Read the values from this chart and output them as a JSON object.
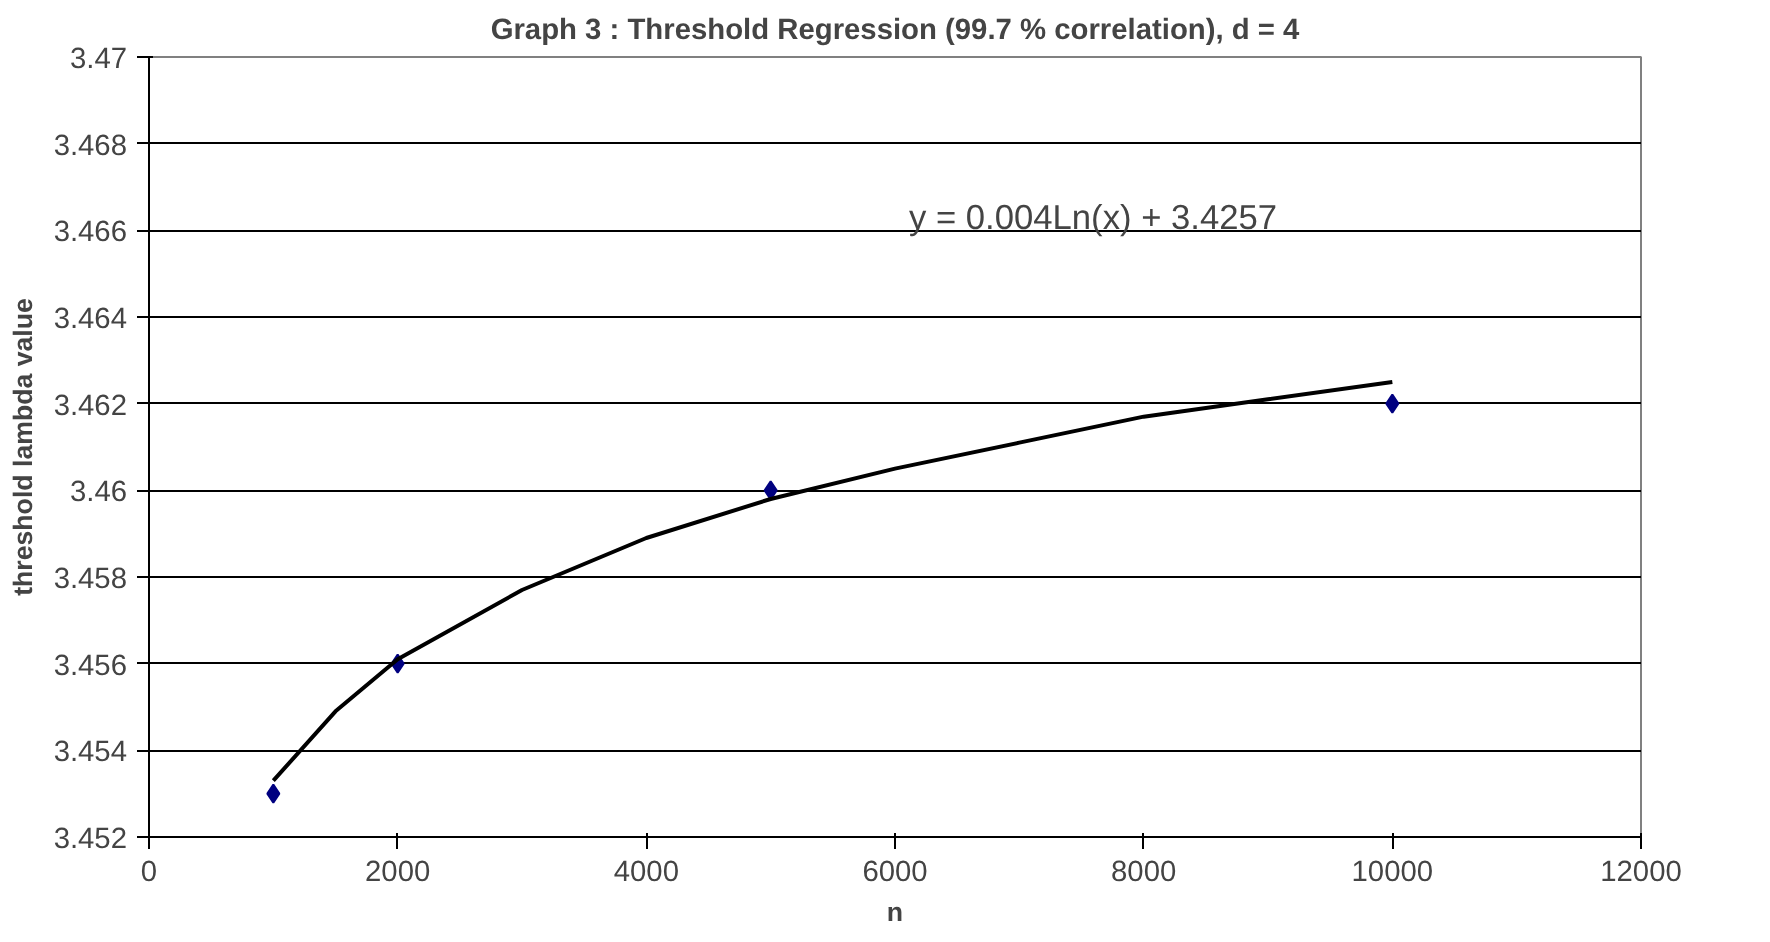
{
  "chart_data": {
    "type": "scatter",
    "title": "Graph 3 : Threshold Regression (99.7 % correlation), d = 4",
    "xlabel": "n",
    "ylabel": "threshold lambda value",
    "series": [
      {
        "color": "#000080",
        "marker": "diamond",
        "x": [
          1000,
          2000,
          5000,
          10000
        ],
        "values": [
          3.453,
          3.456,
          3.46,
          3.462
        ]
      },
      {
        "type": "line",
        "color": "#000000",
        "line_style": "solid",
        "x": [
          1000,
          1500,
          2000,
          3000,
          4000,
          5000,
          6000,
          7000,
          8000,
          9000,
          10000
        ],
        "values": [
          3.4533,
          3.4549,
          3.4561,
          3.4577,
          3.4589,
          3.4598,
          3.4605,
          3.4611,
          3.4617,
          3.4621,
          3.4625
        ]
      }
    ],
    "annotations": [
      "y = 0.004Ln(x) + 3.4257"
    ],
    "xlim": [
      0,
      12000
    ],
    "xticks": [
      0,
      2000,
      4000,
      6000,
      8000,
      10000,
      12000
    ],
    "ylim": [
      3.452,
      3.47
    ],
    "yticks": [
      3.452,
      3.454,
      3.456,
      3.458,
      3.46,
      3.462,
      3.464,
      3.466,
      3.468,
      3.47
    ],
    "grid": "y"
  }
}
